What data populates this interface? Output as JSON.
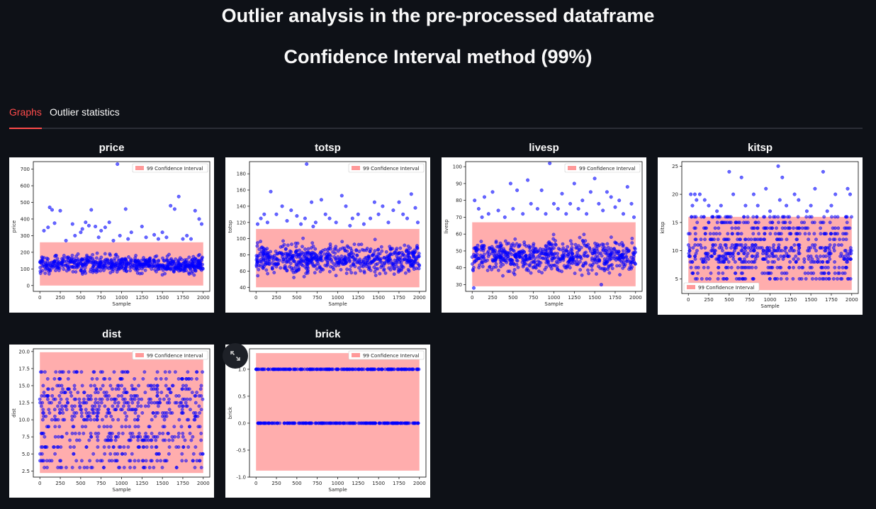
{
  "header": {
    "title": "Outlier analysis in the pre-processed dataframe",
    "subtitle": "Confidence Interval method (99%)"
  },
  "tabs": [
    {
      "label": "Graphs",
      "active": true
    },
    {
      "label": "Outlier statistics",
      "active": false
    }
  ],
  "colors": {
    "accent": "#ff4b4b",
    "point": "#0000ff",
    "band": "#ff9999"
  },
  "chart_data": [
    {
      "type": "scatter",
      "title": "price",
      "xlabel": "Sample",
      "ylabel": "price",
      "xlim": [
        -80,
        2080
      ],
      "ylim": [
        -35,
        745
      ],
      "xticks": [
        0,
        250,
        500,
        750,
        1000,
        1250,
        1500,
        1750,
        2000
      ],
      "yticks": [
        0,
        100,
        200,
        300,
        400,
        500,
        600,
        700
      ],
      "legend": "99 Confidence Interval",
      "legend_loc": "top-right",
      "band": [
        0,
        260
      ],
      "dist": "cont",
      "bulk": [
        55,
        200
      ],
      "outliers": [
        [
          50,
          330
        ],
        [
          100,
          350
        ],
        [
          120,
          470
        ],
        [
          150,
          455
        ],
        [
          180,
          375
        ],
        [
          250,
          450
        ],
        [
          320,
          270
        ],
        [
          400,
          370
        ],
        [
          430,
          300
        ],
        [
          500,
          320
        ],
        [
          520,
          340
        ],
        [
          560,
          380
        ],
        [
          600,
          360
        ],
        [
          630,
          455
        ],
        [
          680,
          355
        ],
        [
          720,
          290
        ],
        [
          750,
          330
        ],
        [
          800,
          350
        ],
        [
          850,
          380
        ],
        [
          900,
          270
        ],
        [
          950,
          730
        ],
        [
          980,
          300
        ],
        [
          1050,
          460
        ],
        [
          1080,
          280
        ],
        [
          1120,
          320
        ],
        [
          1250,
          355
        ],
        [
          1300,
          290
        ],
        [
          1400,
          305
        ],
        [
          1450,
          280
        ],
        [
          1500,
          320
        ],
        [
          1550,
          290
        ],
        [
          1600,
          480
        ],
        [
          1650,
          460
        ],
        [
          1700,
          535
        ],
        [
          1750,
          280
        ],
        [
          1800,
          300
        ],
        [
          1850,
          280
        ],
        [
          1900,
          450
        ],
        [
          1950,
          400
        ],
        [
          1980,
          370
        ]
      ]
    },
    {
      "type": "scatter",
      "title": "totsp",
      "xlabel": "Sample",
      "ylabel": "totsp",
      "xlim": [
        -80,
        2080
      ],
      "ylim": [
        35,
        195
      ],
      "xticks": [
        0,
        250,
        500,
        750,
        1000,
        1250,
        1500,
        1750,
        2000
      ],
      "yticks": [
        40,
        60,
        80,
        100,
        120,
        140,
        160,
        180
      ],
      "legend": "99 Confidence Interval",
      "legend_loc": "top-right",
      "band": [
        40,
        112
      ],
      "dist": "cont",
      "bulk": [
        50,
        100
      ],
      "outliers": [
        [
          20,
          118
        ],
        [
          60,
          125
        ],
        [
          100,
          130
        ],
        [
          140,
          120
        ],
        [
          180,
          158
        ],
        [
          250,
          130
        ],
        [
          320,
          140
        ],
        [
          380,
          122
        ],
        [
          430,
          135
        ],
        [
          500,
          128
        ],
        [
          550,
          118
        ],
        [
          600,
          125
        ],
        [
          620,
          192
        ],
        [
          680,
          145
        ],
        [
          730,
          120
        ],
        [
          800,
          148
        ],
        [
          850,
          130
        ],
        [
          900,
          125
        ],
        [
          980,
          120
        ],
        [
          1050,
          153
        ],
        [
          1100,
          140
        ],
        [
          1180,
          125
        ],
        [
          1250,
          130
        ],
        [
          1320,
          118
        ],
        [
          1400,
          125
        ],
        [
          1450,
          145
        ],
        [
          1500,
          130
        ],
        [
          1550,
          140
        ],
        [
          1620,
          120
        ],
        [
          1680,
          135
        ],
        [
          1750,
          145
        ],
        [
          1800,
          130
        ],
        [
          1850,
          125
        ],
        [
          1900,
          155
        ],
        [
          1950,
          138
        ],
        [
          1980,
          120
        ],
        [
          700,
          115
        ],
        [
          1150,
          116
        ]
      ]
    },
    {
      "type": "scatter",
      "title": "livesp",
      "xlabel": "Sample",
      "ylabel": "livesp",
      "xlim": [
        -80,
        2080
      ],
      "ylim": [
        26,
        103
      ],
      "xticks": [
        0,
        250,
        500,
        750,
        1000,
        1250,
        1500,
        1750,
        2000
      ],
      "yticks": [
        30,
        40,
        50,
        60,
        70,
        80,
        90,
        100
      ],
      "legend": "99 Confidence Interval",
      "legend_loc": "top-right",
      "band": [
        29,
        67
      ],
      "dist": "cont",
      "bulk": [
        34,
        60
      ],
      "outliers": [
        [
          30,
          80
        ],
        [
          80,
          75
        ],
        [
          120,
          70
        ],
        [
          150,
          82
        ],
        [
          200,
          72
        ],
        [
          250,
          85
        ],
        [
          320,
          74
        ],
        [
          400,
          70
        ],
        [
          470,
          90
        ],
        [
          500,
          75
        ],
        [
          550,
          86
        ],
        [
          620,
          72
        ],
        [
          680,
          92
        ],
        [
          720,
          78
        ],
        [
          800,
          75
        ],
        [
          850,
          86
        ],
        [
          900,
          72
        ],
        [
          950,
          102
        ],
        [
          1000,
          78
        ],
        [
          1050,
          75
        ],
        [
          1100,
          84
        ],
        [
          1150,
          72
        ],
        [
          1200,
          78
        ],
        [
          1250,
          90
        ],
        [
          1300,
          75
        ],
        [
          1350,
          80
        ],
        [
          1400,
          72
        ],
        [
          1450,
          85
        ],
        [
          1500,
          93
        ],
        [
          1550,
          78
        ],
        [
          1600,
          74
        ],
        [
          1650,
          85
        ],
        [
          1700,
          82
        ],
        [
          1750,
          76
        ],
        [
          1800,
          80
        ],
        [
          1850,
          72
        ],
        [
          1900,
          88
        ],
        [
          1950,
          78
        ],
        [
          1980,
          70
        ],
        [
          20,
          28
        ],
        [
          1580,
          30
        ]
      ]
    },
    {
      "type": "scatter",
      "title": "kitsp",
      "xlabel": "Sample",
      "ylabel": "kitsp",
      "xlim": [
        -80,
        2080
      ],
      "ylim": [
        2.4,
        25.8
      ],
      "xticks": [
        0,
        250,
        500,
        750,
        1000,
        1250,
        1500,
        1750,
        2000
      ],
      "yticks": [
        5,
        10,
        15,
        20,
        25
      ],
      "legend": "99 Confidence Interval",
      "legend_loc": "bottom-left",
      "band": [
        3,
        16
      ],
      "dist": "disc",
      "bulk": [
        5,
        16
      ],
      "levels": [
        5,
        6,
        7,
        8,
        8.5,
        9,
        9.5,
        10,
        10.5,
        11,
        12,
        13,
        14,
        15,
        16
      ],
      "outliers": [
        [
          30,
          20
        ],
        [
          50,
          18
        ],
        [
          80,
          20
        ],
        [
          100,
          19
        ],
        [
          140,
          20
        ],
        [
          200,
          19
        ],
        [
          250,
          18
        ],
        [
          350,
          17
        ],
        [
          400,
          18
        ],
        [
          500,
          24
        ],
        [
          550,
          20
        ],
        [
          650,
          23
        ],
        [
          700,
          18
        ],
        [
          800,
          20
        ],
        [
          850,
          18
        ],
        [
          950,
          21
        ],
        [
          1000,
          17
        ],
        [
          1100,
          25
        ],
        [
          1150,
          23
        ],
        [
          1200,
          18
        ],
        [
          1300,
          20
        ],
        [
          1350,
          19
        ],
        [
          1450,
          17
        ],
        [
          1500,
          18
        ],
        [
          1550,
          21
        ],
        [
          1650,
          24
        ],
        [
          1700,
          17
        ],
        [
          1750,
          18
        ],
        [
          1800,
          20
        ],
        [
          1950,
          21
        ],
        [
          1980,
          20
        ],
        [
          1120,
          19
        ]
      ]
    },
    {
      "type": "scatter",
      "title": "dist",
      "xlabel": "Sample",
      "ylabel": "dist",
      "xlim": [
        -80,
        2080
      ],
      "ylim": [
        1.6,
        20.4
      ],
      "xticks": [
        0,
        250,
        500,
        750,
        1000,
        1250,
        1500,
        1750,
        2000
      ],
      "yticks": [
        2.5,
        5.0,
        7.5,
        10.0,
        12.5,
        15.0,
        17.5,
        20.0
      ],
      "legend": "99 Confidence Interval",
      "legend_loc": "top-right",
      "band": [
        2.2,
        19.9
      ],
      "dist": "disc",
      "bulk": [
        3,
        17
      ],
      "levels": [
        3,
        4,
        5,
        6,
        7,
        7.5,
        8,
        9,
        10,
        10.5,
        11,
        11.5,
        12,
        12.5,
        13,
        13.5,
        14,
        14.5,
        15,
        16,
        17
      ],
      "outliers": []
    },
    {
      "type": "scatter",
      "title": "brick",
      "xlabel": "Sample",
      "ylabel": "brick",
      "xlim": [
        -80,
        2080
      ],
      "ylim": [
        -1.0,
        1.38
      ],
      "xticks": [
        0,
        250,
        500,
        750,
        1000,
        1250,
        1500,
        1750,
        2000
      ],
      "yticks": [
        -1.0,
        -0.5,
        0.0,
        0.5,
        1.0
      ],
      "legend": "99 Confidence Interval",
      "legend_loc": "top-right",
      "band": [
        -0.88,
        1.3
      ],
      "dist": "binary",
      "bulk": [
        0,
        1
      ],
      "levels": [
        0,
        1
      ],
      "outliers": []
    }
  ]
}
